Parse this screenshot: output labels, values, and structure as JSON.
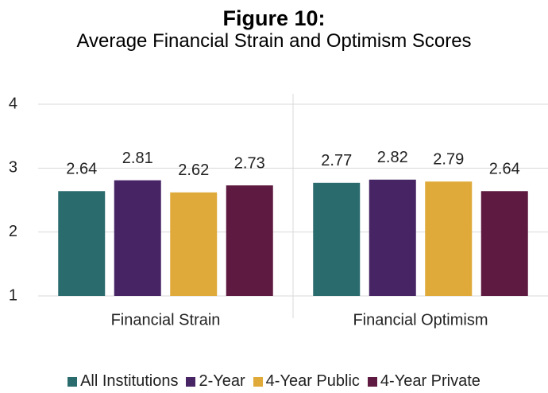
{
  "chart_data": {
    "type": "bar",
    "title": "Figure 10:",
    "subtitle": "Average Financial Strain and Optimism Scores",
    "categories": [
      "Financial Strain",
      "Financial Optimism"
    ],
    "series": [
      {
        "name": "All Institutions",
        "color": "#2a6b6e",
        "values": [
          2.64,
          2.77
        ]
      },
      {
        "name": "2-Year",
        "color": "#472565",
        "values": [
          2.81,
          2.82
        ]
      },
      {
        "name": "4-Year Public",
        "color": "#dfaa3a",
        "values": [
          2.62,
          2.79
        ]
      },
      {
        "name": "4-Year Private",
        "color": "#5e1a40",
        "values": [
          2.73,
          2.64
        ]
      }
    ],
    "ylim": [
      1,
      4
    ],
    "yticks": [
      1,
      2,
      3,
      4
    ],
    "grid": true,
    "legend": "bottom"
  }
}
